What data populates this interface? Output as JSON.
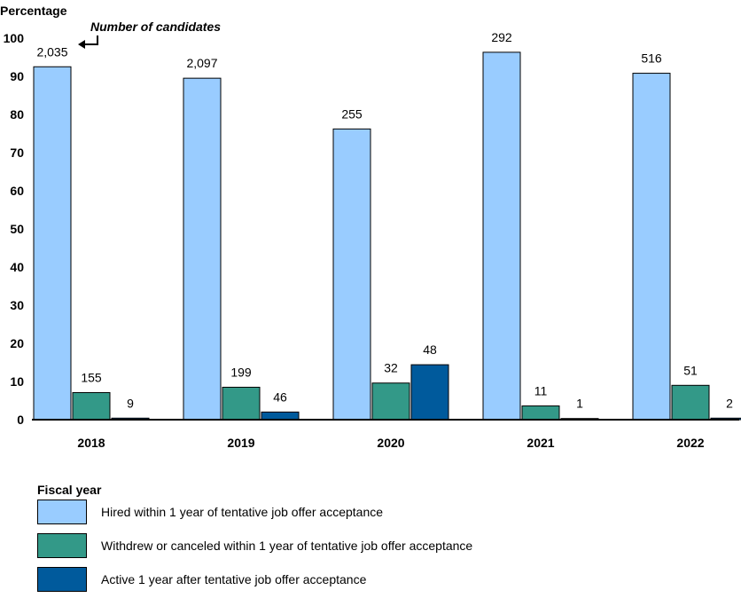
{
  "chart_data": {
    "type": "bar",
    "ylabel": "Percentage",
    "xlabel": "Fiscal year",
    "annotation": "Number of candidates",
    "ylim": [
      0,
      100
    ],
    "yticks": [
      "0",
      "10",
      "20",
      "30",
      "40",
      "50",
      "60",
      "70",
      "80",
      "90",
      "100"
    ],
    "categories": [
      "2018",
      "2019",
      "2020",
      "2021",
      "2022"
    ],
    "grid": false,
    "legend_position": "bottom",
    "series": [
      {
        "name": "Hired within 1 year of tentative job offer acceptance",
        "color": "#99ccff",
        "values": [
          92.5,
          89.5,
          76.2,
          96.3,
          90.8
        ],
        "labels": [
          "2,035",
          "2,097",
          "255",
          "292",
          "516"
        ]
      },
      {
        "name": "Withdrew or canceled within 1 year of tentative job offer acceptance",
        "color": "#339988",
        "values": [
          7.1,
          8.5,
          9.6,
          3.6,
          9.0
        ],
        "labels": [
          "155",
          "199",
          "32",
          "11",
          "51"
        ]
      },
      {
        "name": "Active 1 year after tentative job offer acceptance",
        "color": "#005a9c",
        "values": [
          0.4,
          2.0,
          14.4,
          0.3,
          0.4
        ],
        "labels": [
          "9",
          "46",
          "48",
          "1",
          "2"
        ]
      }
    ]
  }
}
